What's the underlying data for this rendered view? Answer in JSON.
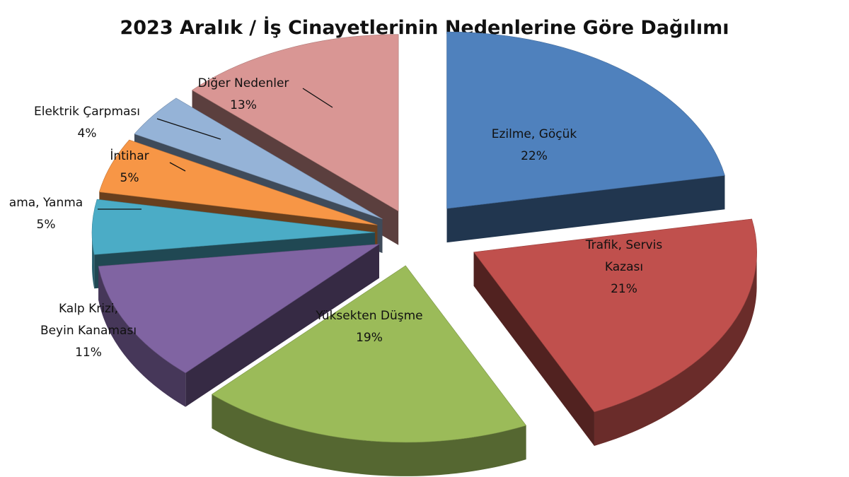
{
  "chart_data": {
    "type": "pie",
    "title": "2023 Aralık / İş Cinayetlerinin Nedenlerine Göre Dağılımı",
    "slices": [
      {
        "name": "Ezilme, Göçük",
        "value": 22,
        "label_lines": [
          "Ezilme, Göçük"
        ],
        "pct_label": "22%",
        "color": "#4f81bd"
      },
      {
        "name": "Trafik, Servis Kazası",
        "value": 21,
        "label_lines": [
          "Trafik, Servis",
          "Kazası"
        ],
        "pct_label": "21%",
        "color": "#c0504d"
      },
      {
        "name": "Yüksekten Düşme",
        "value": 19,
        "label_lines": [
          "Yüksekten Düşme"
        ],
        "pct_label": "19%",
        "color": "#9bbb59"
      },
      {
        "name": "Kalp Krizi, Beyin Kanaması",
        "value": 11,
        "label_lines": [
          "Kalp Krizi,",
          "Beyin Kanaması"
        ],
        "pct_label": "11%",
        "color": "#8064a2"
      },
      {
        "name": "Zehirlenme, Boğulma, Yanma",
        "value": 5,
        "label_lines": [
          "ama, Yanma"
        ],
        "pct_label": "5%",
        "color": "#4bacc6"
      },
      {
        "name": "İntihar",
        "value": 5,
        "label_lines": [
          "İntihar"
        ],
        "pct_label": "5%",
        "color": "#f79646"
      },
      {
        "name": "Elektrik Çarpması",
        "value": 4,
        "label_lines": [
          "Elektrik Çarpması"
        ],
        "pct_label": "4%",
        "color": "#95b3d7"
      },
      {
        "name": "Diğer Nedenler",
        "value": 13,
        "label_lines": [
          "Diğer Nedenler"
        ],
        "pct_label": "13%",
        "color": "#d99694"
      }
    ],
    "legend": "none",
    "start_angle_deg": 0,
    "style": "3d exploded pie"
  }
}
